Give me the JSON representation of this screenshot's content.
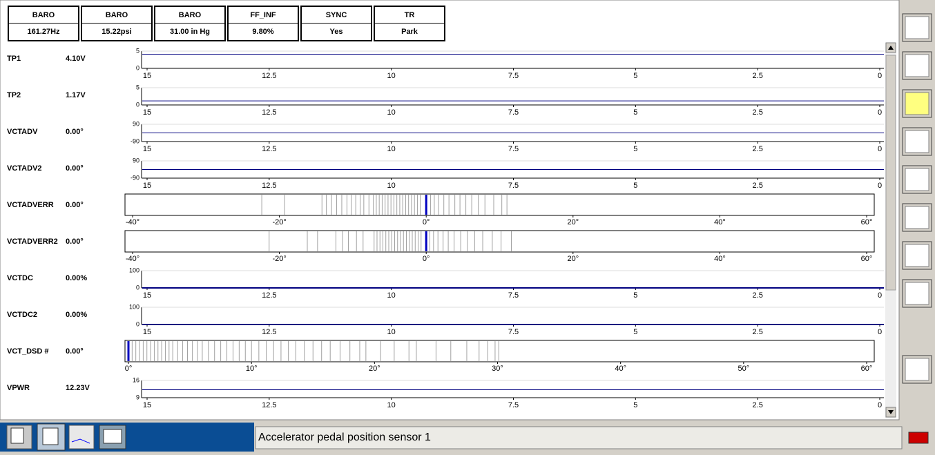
{
  "header": [
    {
      "label": "BARO",
      "value": "161.27Hz"
    },
    {
      "label": "BARO",
      "value": "15.22psi"
    },
    {
      "label": "BARO",
      "value": "31.00 in Hg"
    },
    {
      "label": "FF_INF",
      "value": "9.80%"
    },
    {
      "label": "SYNC",
      "value": "Yes"
    },
    {
      "label": "TR",
      "value": "Park"
    }
  ],
  "strip_xlim": [
    15,
    0
  ],
  "strip_xticks": [
    15,
    12.5,
    10,
    7.5,
    5,
    2.5,
    0
  ],
  "rows": [
    {
      "name": "TP1",
      "reading": "4.10V",
      "kind": "strip",
      "level": 4.1,
      "ylim": [
        0,
        5
      ]
    },
    {
      "name": "TP2",
      "reading": "1.17V",
      "kind": "strip",
      "level": 1.17,
      "ylim": [
        0,
        5
      ]
    },
    {
      "name": "VCTADV",
      "reading": "0.00°",
      "kind": "strip",
      "level": 0,
      "ylim": [
        -90,
        90
      ]
    },
    {
      "name": "VCTADV2",
      "reading": "0.00°",
      "kind": "strip",
      "level": 0,
      "ylim": [
        -90,
        90
      ]
    },
    {
      "name": "VCTADVERR",
      "reading": "0.00°",
      "kind": "hist",
      "level": 0,
      "xlim": [
        -40,
        60
      ],
      "xticks": [
        {
          "value": -40,
          "label": "-40°"
        },
        {
          "value": -20,
          "label": "-20°"
        },
        {
          "value": 0,
          "label": "0°"
        },
        {
          "value": 20,
          "label": "20°"
        },
        {
          "value": 40,
          "label": "40°"
        },
        {
          "value": 60,
          "label": "60°"
        }
      ],
      "hits": [
        -22.4,
        -19.3,
        -14.2,
        -13.6,
        -12.9,
        -12.2,
        -11.5,
        -10.8,
        -10.2,
        -9.6,
        -9,
        -8.5,
        -7.8,
        -7.2,
        -6.8,
        -6.4,
        -6,
        -5.6,
        -5.2,
        -4.8,
        -4.4,
        -4,
        -3.6,
        -3.2,
        -2.8,
        -2.4,
        -2,
        -1.6,
        -1.2,
        -0.8,
        0.6,
        1.1,
        1.7,
        2.4,
        3.1,
        3.9,
        4.6,
        5.4,
        6.2,
        7.1,
        8,
        9.2,
        10.3,
        11
      ]
    },
    {
      "name": "VCTADVERR2",
      "reading": "0.00°",
      "kind": "hist",
      "level": 0,
      "xlim": [
        -40,
        60
      ],
      "xticks": [
        {
          "value": -40,
          "label": "-40°"
        },
        {
          "value": -20,
          "label": "-20°"
        },
        {
          "value": 0,
          "label": "0°"
        },
        {
          "value": 20,
          "label": "20°"
        },
        {
          "value": 40,
          "label": "40°"
        },
        {
          "value": 60,
          "label": "60°"
        }
      ],
      "hits": [
        -21.4,
        -16.2,
        -14.8,
        -12.3,
        -11.4,
        -10.6,
        -9.5,
        -8.6,
        -7.1,
        -6.7,
        -6.3,
        -5.9,
        -5.5,
        -5.1,
        -4.7,
        -4.3,
        -3.9,
        -3.5,
        -3.1,
        -2.7,
        -2.3,
        -1.9,
        -1.5,
        -1.1,
        -0.7,
        0.5,
        1,
        1.6,
        2.3,
        3,
        3.8,
        4.7,
        5.6,
        6.6,
        7.7,
        9,
        10.2,
        11.6
      ]
    },
    {
      "name": "VCTDC",
      "reading": "0.00%",
      "kind": "strip",
      "level": 0,
      "ylim": [
        0,
        100
      ]
    },
    {
      "name": "VCTDC2",
      "reading": "0.00%",
      "kind": "strip",
      "level": 0,
      "ylim": [
        0,
        100
      ]
    },
    {
      "name": "VCT_DSD #",
      "reading": "0.00°",
      "kind": "hist",
      "level": 0,
      "xlim": [
        0,
        60
      ],
      "xticks": [
        {
          "value": 0,
          "label": "0°"
        },
        {
          "value": 10,
          "label": "10°"
        },
        {
          "value": 20,
          "label": "20°"
        },
        {
          "value": 30,
          "label": "30°"
        },
        {
          "value": 40,
          "label": "40°"
        },
        {
          "value": 50,
          "label": "50°"
        },
        {
          "value": 60,
          "label": "60°"
        }
      ],
      "hits": [
        0.3,
        0.6,
        0.9,
        1.2,
        1.5,
        1.8,
        2.1,
        2.4,
        2.7,
        3,
        3.3,
        3.6,
        4,
        4.4,
        4.8,
        5.2,
        5.6,
        6,
        6.5,
        7,
        7.5,
        8,
        8.5,
        9,
        9.5,
        10,
        10.6,
        11.2,
        11.8,
        12.4,
        13,
        13.6,
        14.3,
        15,
        15.7,
        16.4,
        17.2,
        18,
        18.8,
        19.3,
        20.5,
        21.6,
        22.8,
        23.4,
        25,
        26.2,
        27.5,
        28.5,
        29.2,
        29.8,
        30.1
      ]
    },
    {
      "name": "VPWR",
      "reading": "12.23V",
      "kind": "strip",
      "level": 12.23,
      "ylim": [
        9,
        16
      ]
    }
  ],
  "status": "Accelerator pedal position sensor 1"
}
